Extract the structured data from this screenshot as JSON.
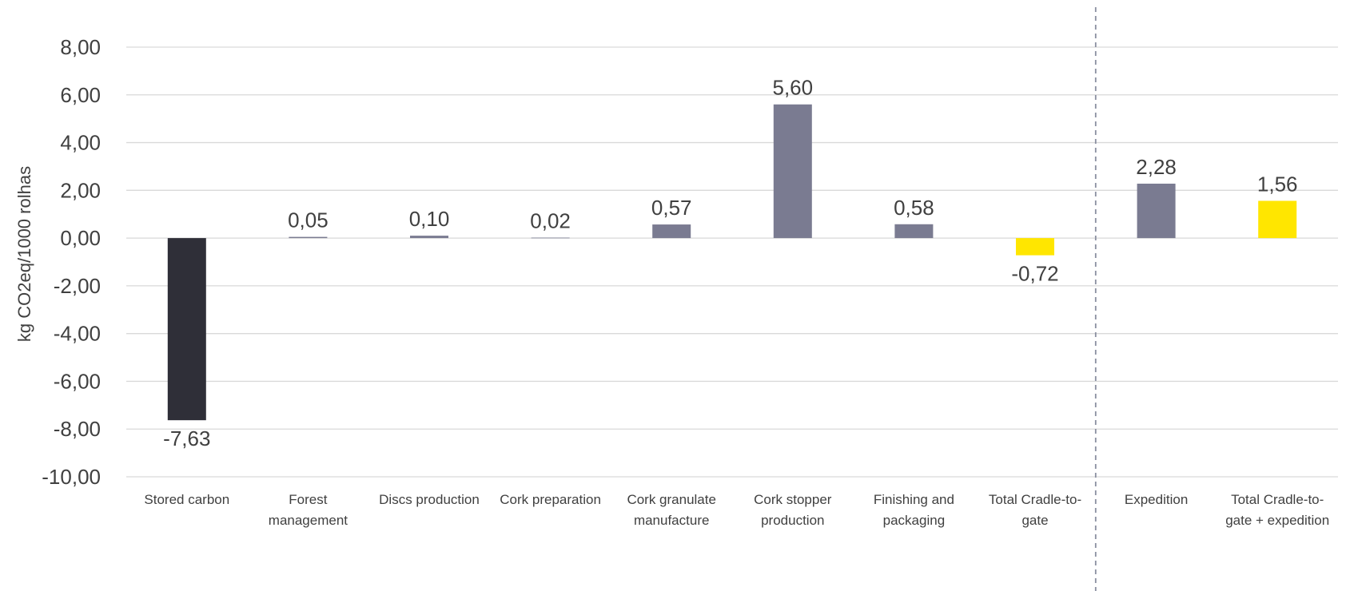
{
  "chart_data": {
    "type": "bar",
    "title": "",
    "ylabel": "kg CO2eq/1000 rolhas",
    "xlabel": "",
    "ylim": [
      -10,
      8
    ],
    "yticks": [
      "-10,00",
      "-8,00",
      "-6,00",
      "-4,00",
      "-2,00",
      "0,00",
      "2,00",
      "4,00",
      "6,00",
      "8,00"
    ],
    "grid": true,
    "legend": "none",
    "separator_after_category_index": 7,
    "categories": [
      [
        "Stored carbon"
      ],
      [
        "Forest",
        "management"
      ],
      [
        "Discs production"
      ],
      [
        "Cork preparation"
      ],
      [
        "Cork granulate",
        "manufacture"
      ],
      [
        "Cork stopper",
        "production"
      ],
      [
        "Finishing and",
        "packaging"
      ],
      [
        "Total Cradle-to-",
        "gate"
      ],
      [
        "Expedition"
      ],
      [
        "Total Cradle-to-",
        "gate + expedition"
      ]
    ],
    "values": [
      -7.63,
      0.05,
      0.1,
      0.02,
      0.57,
      5.6,
      0.58,
      -0.72,
      2.28,
      1.56
    ],
    "value_labels": [
      "-7,63",
      "0,05",
      "0,10",
      "0,02",
      "0,57",
      "5,60",
      "0,58",
      "-0,72",
      "2,28",
      "1,56"
    ],
    "colors": [
      "#2f2f38",
      "#7a7b91",
      "#7a7b91",
      "#7a7b91",
      "#7a7b91",
      "#7a7b91",
      "#7a7b91",
      "#ffe600",
      "#7a7b91",
      "#ffe600"
    ],
    "gridline_color": "#d9d9d9",
    "separator_color": "#8a8fa0"
  }
}
